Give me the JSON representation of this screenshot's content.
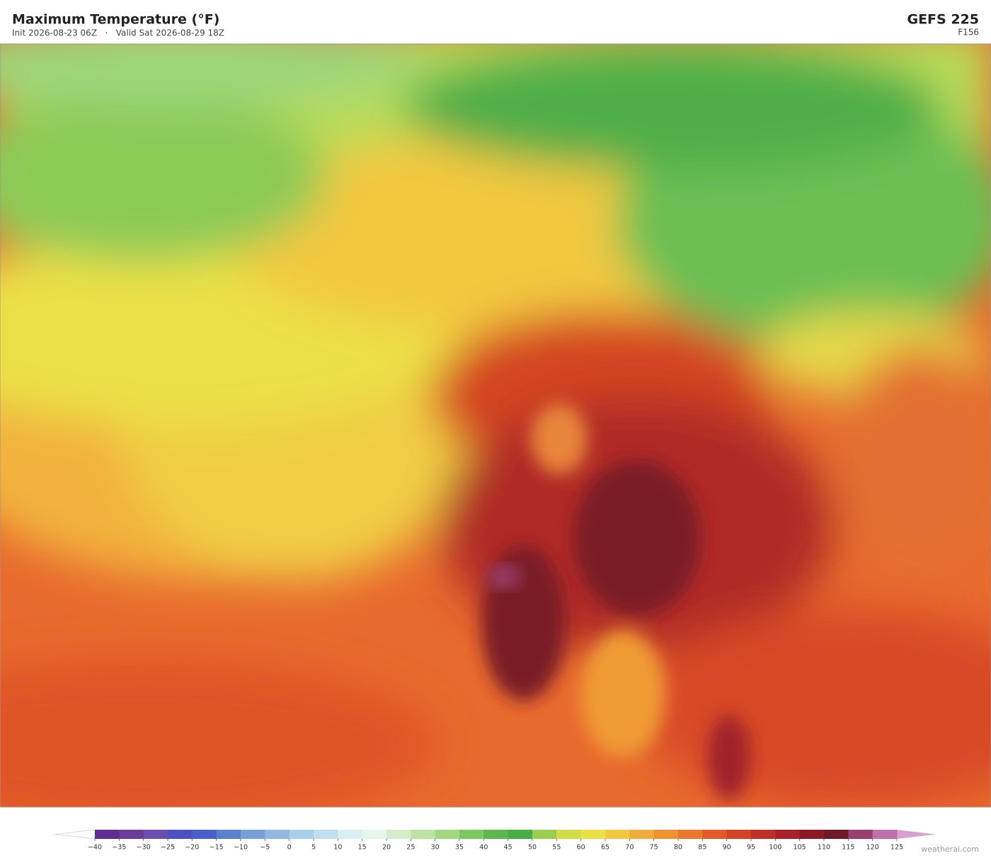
{
  "header": {
    "title": "Maximum Temperature  (°F)",
    "subtitle": "Init 2026-08-23 06Z   ·   Valid Sat 2026-08-29 18Z",
    "model": "GEFS  225",
    "forecast_hour": "F156"
  },
  "colorbar": {
    "ticks": [
      {
        "value": -40,
        "label": "−40"
      },
      {
        "value": -35,
        "label": "−35"
      },
      {
        "value": -30,
        "label": "−30"
      },
      {
        "value": -25,
        "label": "−25"
      },
      {
        "value": -20,
        "label": "−20"
      },
      {
        "value": -15,
        "label": "−15"
      },
      {
        "value": -10,
        "label": "−10"
      },
      {
        "value": -5,
        "label": "−5"
      },
      0,
      5,
      10,
      15,
      20,
      25,
      30,
      35,
      40,
      45,
      50,
      55,
      60,
      65,
      70,
      75,
      80,
      85,
      90,
      95,
      100,
      105,
      110,
      115,
      120,
      125
    ],
    "colors": [
      "#5e2d91",
      "#6a3d9a",
      "#6a4fb0",
      "#4e4fc0",
      "#4a60c8",
      "#5b80cc",
      "#78a0d8",
      "#90b8e0",
      "#a8d0ea",
      "#c0e0f0",
      "#d8eef5",
      "#e8f5ea",
      "#d4ecc8",
      "#bde3a4",
      "#a2d882",
      "#7ec860",
      "#5cb84c",
      "#4aae48",
      "#9ccc50",
      "#d0dc48",
      "#ece048",
      "#f2c840",
      "#f0ac3c",
      "#ee9232",
      "#ea782e",
      "#e25a28",
      "#d44424",
      "#c0302a",
      "#a8202a",
      "#8c1a24",
      "#701a28",
      "#9a4070",
      "#c070a8"
    ],
    "extend_colors": [
      "#ffffff",
      "#d8a0cc"
    ]
  },
  "credit": "weatherai.com"
}
